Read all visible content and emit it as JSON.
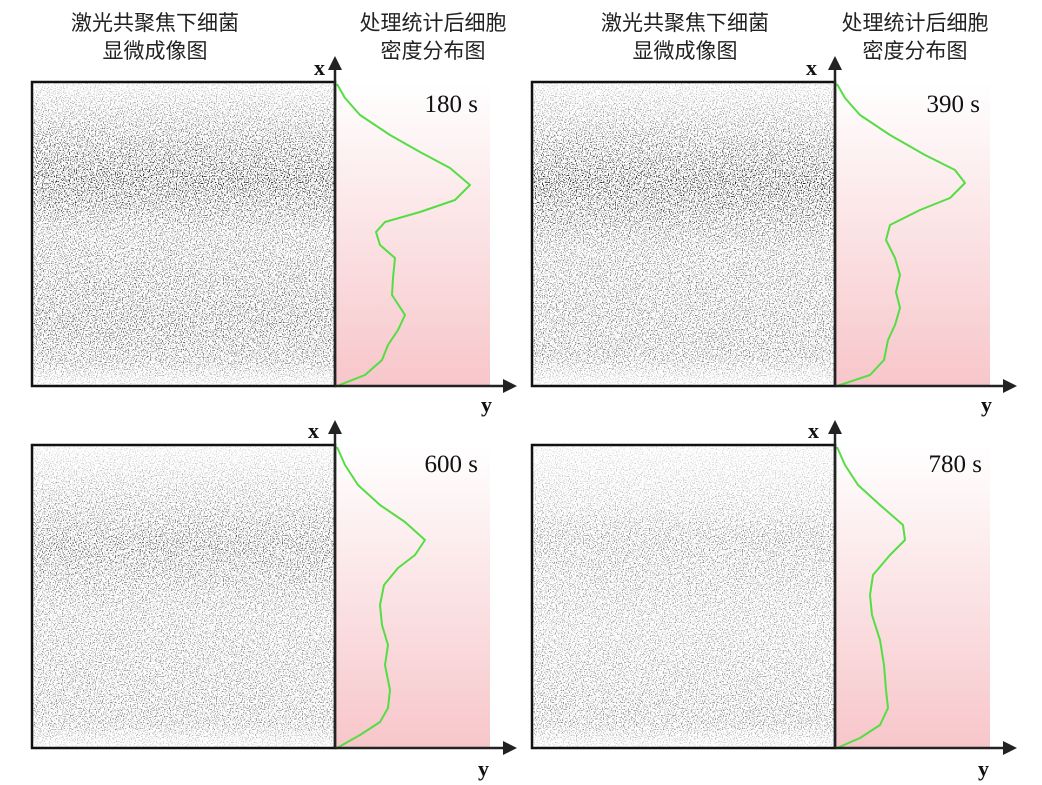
{
  "columns": [
    {
      "image_title": [
        "激光共聚焦下细菌",
        "显微成像图"
      ],
      "density_title": [
        "处理统计后细胞",
        "密度分布图"
      ]
    },
    {
      "image_title": [
        "激光共聚焦下细菌",
        "显微成像图"
      ],
      "density_title": [
        "处理统计后细胞",
        "密度分布图"
      ]
    }
  ],
  "panels": [
    {
      "time": "180 s",
      "x_axis": "x",
      "y_axis": "y"
    },
    {
      "time": "390 s",
      "x_axis": "x",
      "y_axis": "y"
    },
    {
      "time": "600 s",
      "x_axis": "x",
      "y_axis": "y"
    },
    {
      "time": "780 s",
      "x_axis": "x",
      "y_axis": "y"
    }
  ]
}
